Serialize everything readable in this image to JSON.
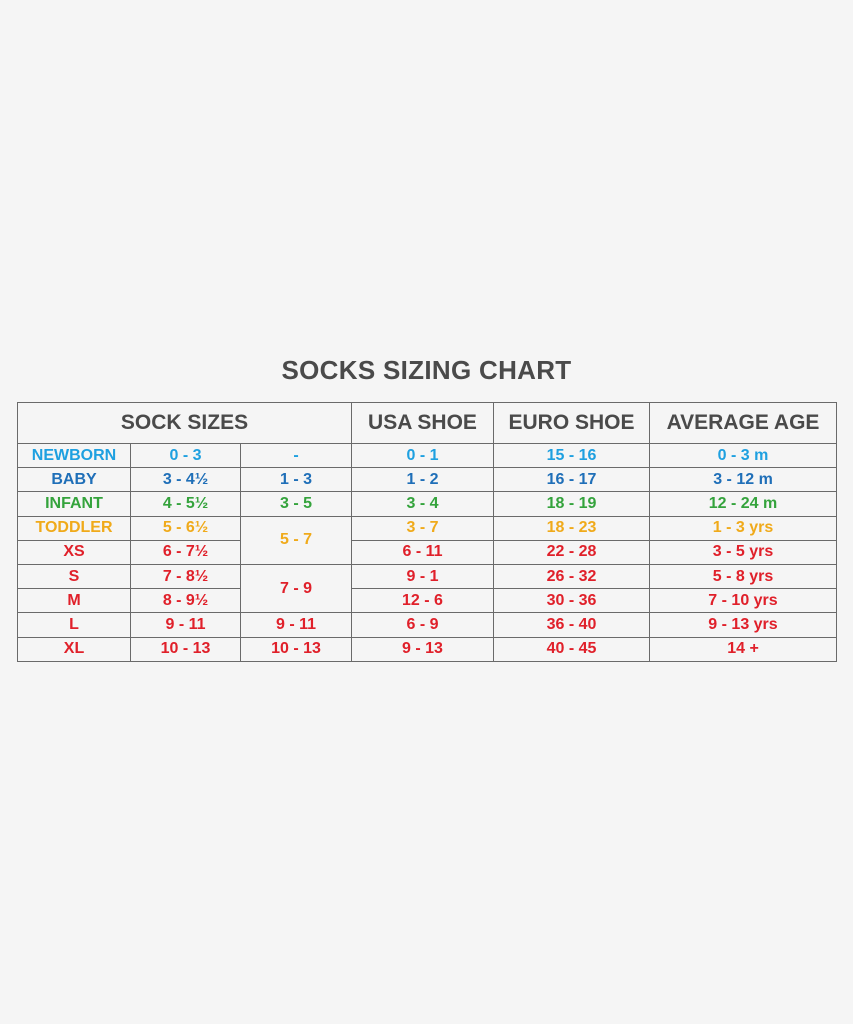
{
  "title": "SOCKS SIZING CHART",
  "headers": {
    "sock_sizes": "SOCK SIZES",
    "usa_shoe": "USA SHOE",
    "euro_shoe": "EURO SHOE",
    "average_age": "AVERAGE AGE"
  },
  "colors": {
    "newborn": "#1ea0e0",
    "baby": "#1f6fb8",
    "infant": "#34a33c",
    "toddler": "#f0aa1a",
    "older": "#e0202a",
    "text_dark": "#4a4a4a"
  },
  "rows": [
    {
      "size": "NEWBORN",
      "range1": "0 - 3",
      "range2": "-",
      "usa": "0 - 1",
      "euro": "15 - 16",
      "age": "0 - 3 m"
    },
    {
      "size": "BABY",
      "range1": "3 - 4½",
      "range2": "1 - 3",
      "usa": "1 - 2",
      "euro": "16 - 17",
      "age": "3 - 12 m"
    },
    {
      "size": "INFANT",
      "range1": "4 - 5½",
      "range2": "3 - 5",
      "usa": "3 - 4",
      "euro": "18 - 19",
      "age": "12 - 24 m"
    },
    {
      "size": "TODDLER",
      "range1": "5 - 6½",
      "range2": "5 - 7",
      "usa": "3 - 7",
      "euro": "18 - 23",
      "age": "1 - 3 yrs"
    },
    {
      "size": "XS",
      "range1": "6 - 7½",
      "range2": "",
      "usa": "6 - 11",
      "euro": "22 - 28",
      "age": "3 - 5 yrs"
    },
    {
      "size": "S",
      "range1": "7 - 8½",
      "range2": "7 - 9",
      "usa": "9 - 1",
      "euro": "26 - 32",
      "age": "5 - 8 yrs"
    },
    {
      "size": "M",
      "range1": "8 - 9½",
      "range2": "",
      "usa": "12 - 6",
      "euro": "30 - 36",
      "age": "7 - 10 yrs"
    },
    {
      "size": "L",
      "range1": "9 - 11",
      "range2": "9 - 11",
      "usa": "6 - 9",
      "euro": "36 - 40",
      "age": "9 - 13 yrs"
    },
    {
      "size": "XL",
      "range1": "10 - 13",
      "range2": "10 - 13",
      "usa": "9 - 13",
      "euro": "40 - 45",
      "age": "14 +"
    }
  ]
}
